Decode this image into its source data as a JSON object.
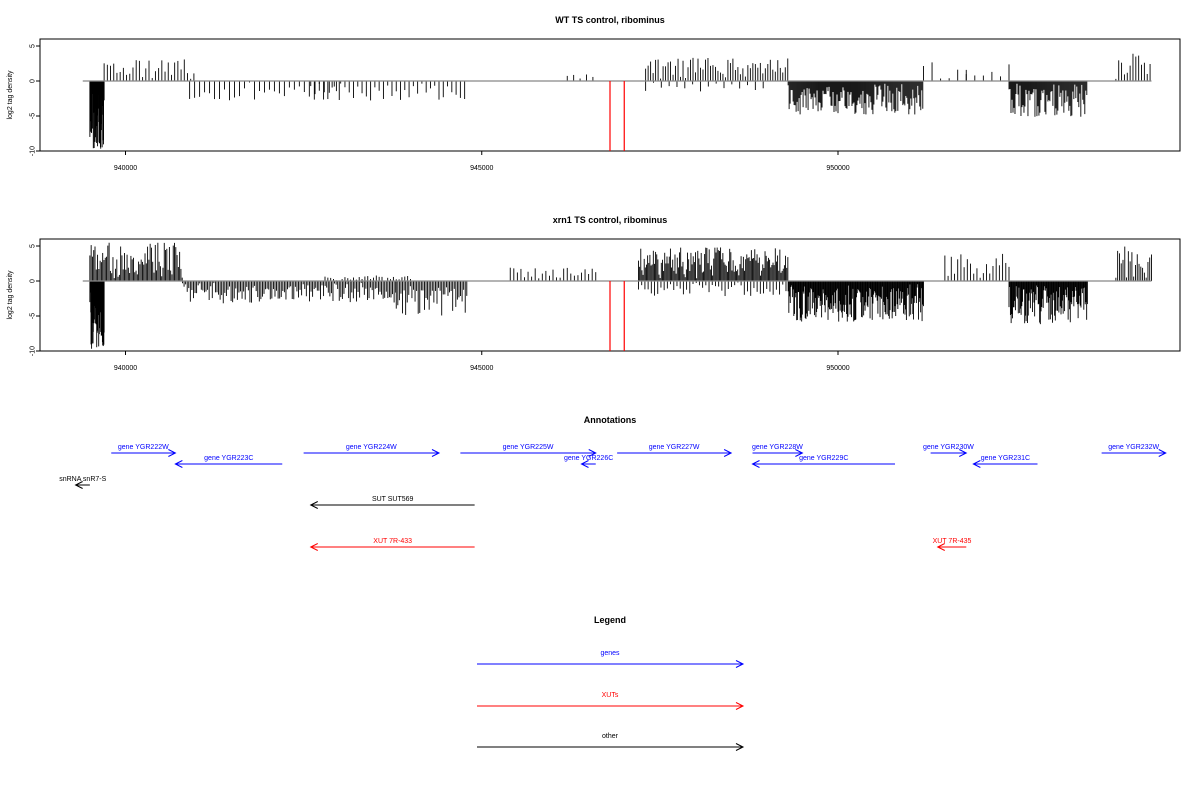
{
  "chart_data": [
    {
      "type": "bar",
      "title": "WT TS control, ribominus",
      "ylabel": "log2 tag density",
      "xlabel": "",
      "xlim": [
        938800,
        954800
      ],
      "ylim": [
        -10,
        6
      ],
      "x_ticks": [
        940000,
        945000,
        950000
      ],
      "y_ticks": [
        5,
        0,
        -5,
        -10
      ],
      "baseline_color": "#888888",
      "bar_color": "#000000",
      "marker_color": "#ff0000",
      "markers": [
        {
          "x": 946800,
          "value": -10
        },
        {
          "x": 947000,
          "value": -10
        }
      ],
      "segments": [
        {
          "start": 939500,
          "end": 939700,
          "step": 4,
          "sign": -1,
          "peak": 9.8
        },
        {
          "start": 939700,
          "end": 941000,
          "step": 45,
          "sign": 1,
          "peak": 3.2
        },
        {
          "start": 940900,
          "end": 943000,
          "step": 70,
          "sign": -1,
          "peak": 2.8
        },
        {
          "start": 942600,
          "end": 944800,
          "step": 60,
          "sign": -1,
          "peak": 2.8
        },
        {
          "start": 946200,
          "end": 946600,
          "step": 90,
          "sign": 1,
          "peak": 1.0
        },
        {
          "start": 947300,
          "end": 949300,
          "step": 35,
          "sign": 1,
          "peak": 3.6
        },
        {
          "start": 947300,
          "end": 949000,
          "step": 110,
          "sign": -1,
          "peak": 1.5
        },
        {
          "start": 949300,
          "end": 951200,
          "step": 14,
          "sign": -1,
          "peak": 4.8
        },
        {
          "start": 951200,
          "end": 951800,
          "step": 120,
          "sign": 1,
          "peak": 2.8
        },
        {
          "start": 951800,
          "end": 952400,
          "step": 120,
          "sign": 1,
          "peak": 2.5
        },
        {
          "start": 952400,
          "end": 953500,
          "step": 14,
          "sign": -1,
          "peak": 5.2
        },
        {
          "start": 953900,
          "end": 954400,
          "step": 40,
          "sign": 1,
          "peak": 4.0
        }
      ]
    },
    {
      "type": "bar",
      "title": "xrn1 TS control, ribominus",
      "ylabel": "log2 tag density",
      "xlabel": "",
      "xlim": [
        938800,
        954800
      ],
      "ylim": [
        -10,
        6
      ],
      "x_ticks": [
        940000,
        945000,
        950000
      ],
      "y_ticks": [
        5,
        0,
        -5,
        -10
      ],
      "baseline_color": "#888888",
      "bar_color": "#000000",
      "marker_color": "#ff0000",
      "markers": [
        {
          "x": 946800,
          "value": -10
        },
        {
          "x": 947000,
          "value": -10
        }
      ],
      "segments": [
        {
          "start": 939500,
          "end": 939700,
          "step": 4,
          "sign": -1,
          "peak": 9.8
        },
        {
          "start": 939500,
          "end": 940800,
          "step": 18,
          "sign": 1,
          "peak": 5.5
        },
        {
          "start": 940800,
          "end": 943800,
          "step": 22,
          "sign": -1,
          "peak": 3.2
        },
        {
          "start": 942800,
          "end": 944000,
          "step": 40,
          "sign": 1,
          "peak": 0.8
        },
        {
          "start": 943800,
          "end": 944800,
          "step": 22,
          "sign": -1,
          "peak": 5.0
        },
        {
          "start": 945400,
          "end": 946600,
          "step": 50,
          "sign": 1,
          "peak": 2.0
        },
        {
          "start": 947200,
          "end": 949300,
          "step": 16,
          "sign": 1,
          "peak": 4.8
        },
        {
          "start": 947200,
          "end": 949300,
          "step": 45,
          "sign": -1,
          "peak": 2.2
        },
        {
          "start": 949300,
          "end": 951200,
          "step": 10,
          "sign": -1,
          "peak": 5.8
        },
        {
          "start": 951500,
          "end": 952400,
          "step": 45,
          "sign": 1,
          "peak": 4.0
        },
        {
          "start": 952400,
          "end": 953500,
          "step": 10,
          "sign": -1,
          "peak": 6.2
        },
        {
          "start": 953900,
          "end": 954400,
          "step": 25,
          "sign": 1,
          "peak": 5.0
        }
      ]
    }
  ],
  "annotations": {
    "title": "Annotations",
    "features": [
      {
        "label": "gene YGR222W",
        "start": 939800,
        "end": 940700,
        "dir": "right",
        "color": "#0000ff",
        "row": 0
      },
      {
        "label": "gene YGR223C",
        "start": 940700,
        "end": 942200,
        "dir": "left",
        "color": "#0000ff",
        "row": 1
      },
      {
        "label": "gene YGR224W",
        "start": 942500,
        "end": 944400,
        "dir": "right",
        "color": "#0000ff",
        "row": 0
      },
      {
        "label": "gene YGR225W",
        "start": 944700,
        "end": 946600,
        "dir": "right",
        "color": "#0000ff",
        "row": 0
      },
      {
        "label": "gene YGR226C",
        "start": 946400,
        "end": 946600,
        "dir": "left",
        "color": "#0000ff",
        "row": 1
      },
      {
        "label": "gene YGR227W",
        "start": 946900,
        "end": 948500,
        "dir": "right",
        "color": "#0000ff",
        "row": 0
      },
      {
        "label": "gene YGR228W",
        "start": 948800,
        "end": 949500,
        "dir": "right",
        "color": "#0000ff",
        "row": 0
      },
      {
        "label": "gene YGR229C",
        "start": 948800,
        "end": 950800,
        "dir": "left",
        "color": "#0000ff",
        "row": 1
      },
      {
        "label": "gene YGR230W",
        "start": 951300,
        "end": 951800,
        "dir": "right",
        "color": "#0000ff",
        "row": 0
      },
      {
        "label": "gene YGR231C",
        "start": 951900,
        "end": 952800,
        "dir": "left",
        "color": "#0000ff",
        "row": 1
      },
      {
        "label": "gene YGR232W",
        "start": 953700,
        "end": 954600,
        "dir": "right",
        "color": "#0000ff",
        "row": 0
      },
      {
        "label": "snRNA snR7-S",
        "start": 939300,
        "end": 939500,
        "dir": "left",
        "color": "#000000",
        "row": 2
      },
      {
        "label": "SUT SUT569",
        "start": 942600,
        "end": 944900,
        "dir": "left",
        "color": "#000000",
        "row": 3
      },
      {
        "label": "XUT 7R-433",
        "start": 942600,
        "end": 944900,
        "dir": "left",
        "color": "#ff0000",
        "row": 4
      },
      {
        "label": "XUT 7R-435",
        "start": 951400,
        "end": 951800,
        "dir": "left",
        "color": "#ff0000",
        "row": 4
      }
    ]
  },
  "legend": {
    "title": "Legend",
    "items": [
      {
        "label": "genes",
        "color": "#0000ff"
      },
      {
        "label": "XUTs",
        "color": "#ff0000"
      },
      {
        "label": "other",
        "color": "#000000"
      }
    ]
  }
}
